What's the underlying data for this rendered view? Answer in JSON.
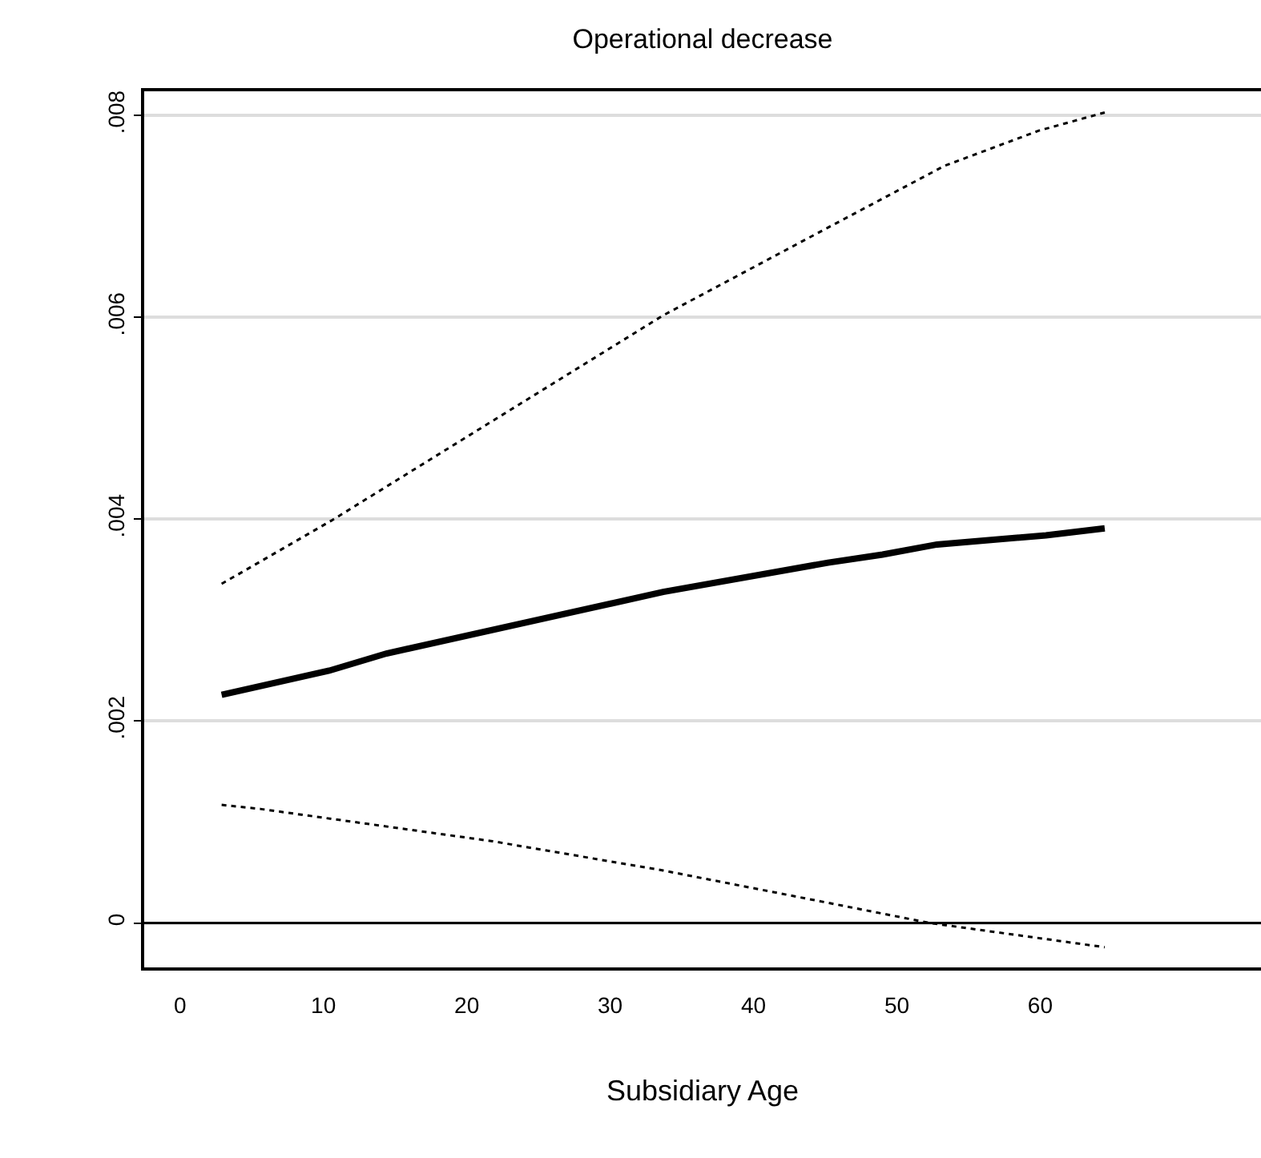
{
  "chart_data": {
    "type": "line",
    "title": "Operational decrease",
    "xlabel": "Subsidiary Age",
    "series": [
      {
        "color": "#000000",
        "line_style": "dotted",
        "x": [
          2.9,
          10.6,
          33.7,
          45.2,
          53.3,
          59.9,
          64.5
        ],
        "values": [
          0.00336,
          0.00399,
          0.00602,
          0.00689,
          0.0075,
          0.00785,
          0.00803
        ]
      },
      {
        "color": "#000000",
        "line_style": "solid",
        "x": [
          2.9,
          10.4,
          14.4,
          33.7,
          45.2,
          49.0,
          52.8,
          60.4,
          64.5
        ],
        "values": [
          0.00226,
          0.0025,
          0.00267,
          0.00328,
          0.00357,
          0.00365,
          0.00375,
          0.00384,
          0.00391
        ]
      },
      {
        "color": "#000000",
        "line_style": "dotted",
        "x": [
          2.9,
          5.6,
          21.8,
          33.7,
          45.2,
          52.3,
          64.5
        ],
        "values": [
          0.00117,
          0.00113,
          0.00081,
          0.00052,
          0.0002,
          0,
          -0.00024
        ]
      }
    ],
    "xlim": [
      -2.5,
      75.4
    ],
    "xticks": [
      0,
      10,
      20,
      30,
      40,
      50,
      60
    ],
    "ylim": [
      -0.00044,
      0.00824
    ],
    "yticks": [
      0,
      {
        "value": 0.002,
        "label": ".002"
      },
      {
        "value": 0.004,
        "label": ".004"
      },
      {
        "value": 0.006,
        "label": ".006"
      },
      {
        "value": 0.008,
        "label": ".008"
      }
    ],
    "ref_lines": [
      {
        "axis": "y",
        "value": 0,
        "color": "#000000"
      }
    ],
    "grid": "y"
  }
}
